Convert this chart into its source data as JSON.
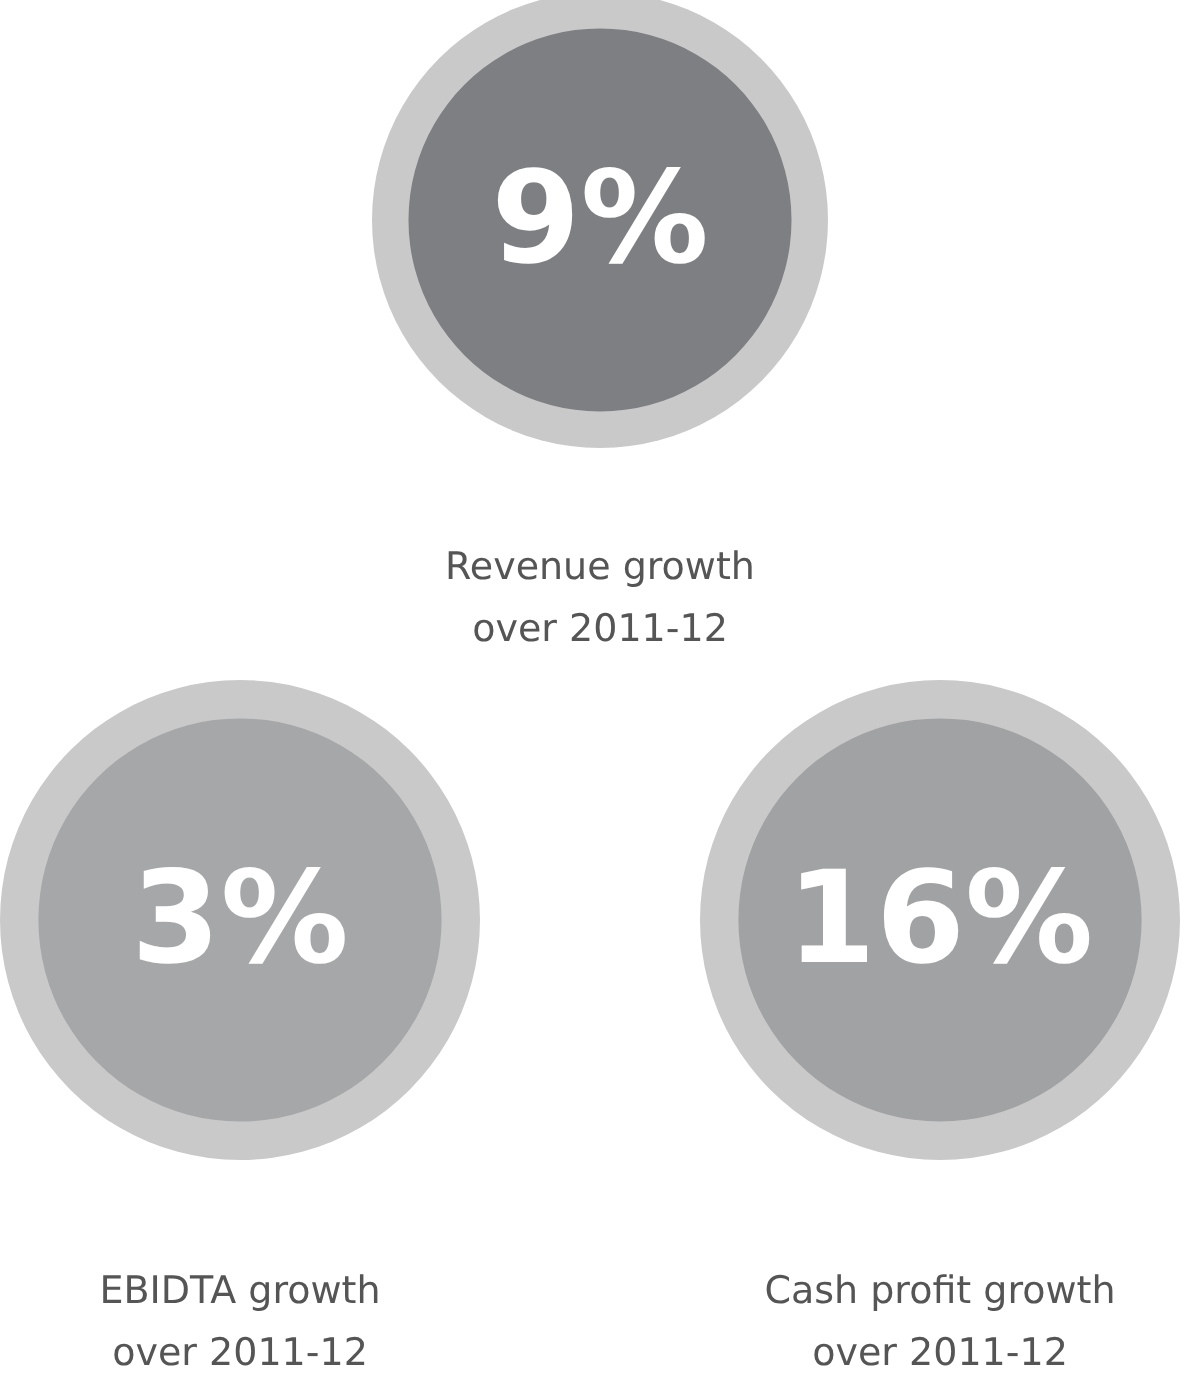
{
  "chart_data": {
    "type": "other",
    "categories": [
      "Revenue growth\nover 2011-12",
      "EBIDTA growth\nover 2011-12",
      "Cash profit growth\nover 2011-12"
    ],
    "values": [
      9,
      3,
      16
    ],
    "value_labels": [
      "9%",
      "3%",
      "16%"
    ],
    "colors": [
      "#7e7f82",
      "#a6a7a9",
      "#a1a2a4"
    ]
  }
}
